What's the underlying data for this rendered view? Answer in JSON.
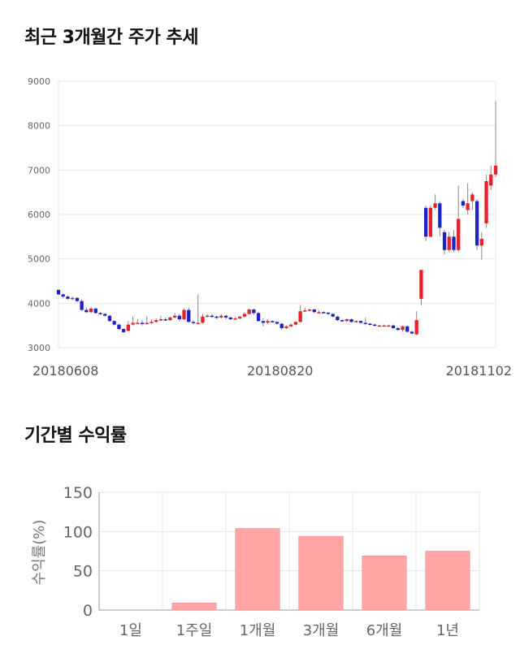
{
  "sections": {
    "price_title": "최근 3개월간 주가 추세",
    "returns_title": "기간별 수익률"
  },
  "colors": {
    "up": "#e8202a",
    "down": "#1a23c9",
    "bar": "#ffa5a5",
    "grid": "#e6e6e6"
  },
  "chart_data": [
    {
      "type": "candlestick",
      "title": "최근 3개월간 주가 추세",
      "ylim": [
        3000,
        9000
      ],
      "yticks": [
        3000,
        4000,
        5000,
        6000,
        7000,
        8000,
        9000
      ],
      "xticks": [
        {
          "label": "20180608",
          "index": 0
        },
        {
          "label": "20180820",
          "index": 48
        },
        {
          "label": "20181102",
          "index": 99
        }
      ],
      "candles": [
        [
          4300,
          4200,
          4320,
          4180
        ],
        [
          4200,
          4150,
          4230,
          4120
        ],
        [
          4150,
          4100,
          4180,
          4080
        ],
        [
          4100,
          4120,
          4150,
          4070
        ],
        [
          4120,
          4050,
          4140,
          4020
        ],
        [
          4050,
          3850,
          4080,
          3830
        ],
        [
          3850,
          3800,
          3900,
          3780
        ],
        [
          3800,
          3880,
          3920,
          3780
        ],
        [
          3880,
          3780,
          3900,
          3760
        ],
        [
          3780,
          3760,
          3800,
          3740
        ],
        [
          3760,
          3720,
          3780,
          3700
        ],
        [
          3720,
          3600,
          3740,
          3580
        ],
        [
          3600,
          3520,
          3620,
          3500
        ],
        [
          3520,
          3420,
          3540,
          3400
        ],
        [
          3420,
          3350,
          3440,
          3330
        ],
        [
          3380,
          3520,
          3600,
          3360
        ],
        [
          3520,
          3560,
          3700,
          3500
        ],
        [
          3560,
          3560,
          3640,
          3540
        ],
        [
          3560,
          3540,
          3620,
          3500
        ],
        [
          3540,
          3560,
          3700,
          3520
        ],
        [
          3560,
          3580,
          3640,
          3540
        ],
        [
          3580,
          3620,
          3660,
          3560
        ],
        [
          3620,
          3640,
          3720,
          3600
        ],
        [
          3640,
          3620,
          3680,
          3600
        ],
        [
          3620,
          3680,
          3700,
          3600
        ],
        [
          3680,
          3720,
          3780,
          3660
        ],
        [
          3720,
          3640,
          3760,
          3600
        ],
        [
          3640,
          3850,
          3880,
          3620
        ],
        [
          3850,
          3580,
          3900,
          3560
        ],
        [
          3580,
          3560,
          3620,
          3520
        ],
        [
          3560,
          3560,
          4200,
          3540
        ],
        [
          3560,
          3700,
          3760,
          3540
        ],
        [
          3700,
          3720,
          3760,
          3680
        ],
        [
          3720,
          3700,
          3760,
          3680
        ],
        [
          3700,
          3680,
          3720,
          3640
        ],
        [
          3680,
          3720,
          3760,
          3660
        ],
        [
          3720,
          3680,
          3740,
          3640
        ],
        [
          3680,
          3640,
          3700,
          3620
        ],
        [
          3640,
          3660,
          3700,
          3620
        ],
        [
          3660,
          3700,
          3720,
          3640
        ],
        [
          3700,
          3760,
          3800,
          3680
        ],
        [
          3760,
          3860,
          3880,
          3740
        ],
        [
          3860,
          3780,
          3880,
          3740
        ],
        [
          3780,
          3600,
          3800,
          3580
        ],
        [
          3600,
          3560,
          3660,
          3480
        ],
        [
          3560,
          3600,
          3640,
          3540
        ],
        [
          3600,
          3580,
          3620,
          3560
        ],
        [
          3580,
          3540,
          3600,
          3520
        ],
        [
          3540,
          3440,
          3560,
          3400
        ],
        [
          3440,
          3480,
          3500,
          3420
        ],
        [
          3480,
          3520,
          3540,
          3460
        ],
        [
          3520,
          3580,
          3600,
          3500
        ],
        [
          3580,
          3820,
          3960,
          3560
        ],
        [
          3820,
          3840,
          3900,
          3800
        ],
        [
          3840,
          3860,
          3880,
          3820
        ],
        [
          3860,
          3800,
          3880,
          3780
        ],
        [
          3800,
          3800,
          3840,
          3780
        ],
        [
          3800,
          3790,
          3820,
          3770
        ],
        [
          3790,
          3760,
          3800,
          3740
        ],
        [
          3760,
          3700,
          3780,
          3680
        ],
        [
          3700,
          3620,
          3720,
          3600
        ],
        [
          3620,
          3600,
          3640,
          3580
        ],
        [
          3600,
          3640,
          3660,
          3580
        ],
        [
          3640,
          3580,
          3660,
          3560
        ],
        [
          3580,
          3600,
          3620,
          3560
        ],
        [
          3600,
          3560,
          3620,
          3540
        ],
        [
          3560,
          3540,
          3680,
          3520
        ],
        [
          3540,
          3520,
          3560,
          3500
        ],
        [
          3520,
          3500,
          3540,
          3480
        ],
        [
          3500,
          3500,
          3520,
          3480
        ],
        [
          3500,
          3500,
          3520,
          3480
        ],
        [
          3500,
          3500,
          3520,
          3480
        ],
        [
          3500,
          3440,
          3520,
          3420
        ],
        [
          3440,
          3400,
          3460,
          3380
        ],
        [
          3400,
          3480,
          3500,
          3360
        ],
        [
          3480,
          3360,
          3500,
          3340
        ],
        [
          3360,
          3320,
          3380,
          3300
        ],
        [
          3300,
          3620,
          3820,
          3280
        ],
        [
          4100,
          4750,
          4760,
          3960
        ],
        [
          6150,
          5500,
          6200,
          5400
        ],
        [
          5500,
          6150,
          6200,
          5480
        ],
        [
          6150,
          6250,
          6450,
          6100
        ],
        [
          6250,
          5700,
          6300,
          5500
        ],
        [
          5600,
          5200,
          5650,
          5100
        ],
        [
          5200,
          5500,
          5600,
          5150
        ],
        [
          5500,
          5200,
          5650,
          5150
        ],
        [
          5200,
          5900,
          6650,
          5150
        ],
        [
          6300,
          6200,
          6350,
          6150
        ],
        [
          6100,
          6250,
          6700,
          6000
        ],
        [
          6300,
          6450,
          6500,
          6100
        ],
        [
          6300,
          5300,
          6350,
          5200
        ],
        [
          5300,
          5450,
          5600,
          4980
        ],
        [
          5800,
          6750,
          6900,
          5700
        ],
        [
          6650,
          6900,
          7100,
          6550
        ],
        [
          6900,
          7100,
          8550,
          6850
        ]
      ]
    },
    {
      "type": "bar",
      "ylabel": "수익률(%)",
      "ylim": [
        0,
        150
      ],
      "yticks": [
        0,
        50,
        100,
        150
      ],
      "categories": [
        "1일",
        "1주일",
        "1개월",
        "3개월",
        "6개월",
        "1년"
      ],
      "values": [
        0,
        9,
        104,
        94,
        69,
        75
      ]
    }
  ]
}
